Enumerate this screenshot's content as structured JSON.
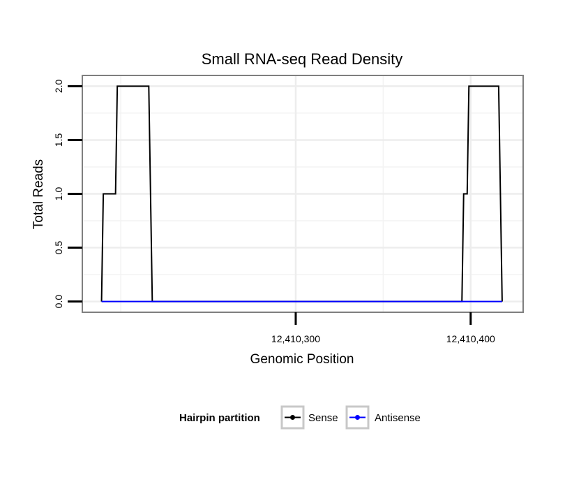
{
  "chart_data": {
    "type": "line",
    "title": "Small RNA-seq Read Density",
    "xlabel": "Genomic Position",
    "ylabel": "Total Reads",
    "xlim": [
      12410178,
      12410430
    ],
    "ylim": [
      -0.1,
      2.1
    ],
    "x_ticks": [
      {
        "value": 12410300,
        "label": "12,410,300"
      },
      {
        "value": 12410400,
        "label": "12,410,400"
      }
    ],
    "y_ticks": [
      {
        "value": 0,
        "label": "0.0"
      },
      {
        "value": 0.5,
        "label": "0.5"
      },
      {
        "value": 1,
        "label": "1.0"
      },
      {
        "value": 1.5,
        "label": "1.5"
      },
      {
        "value": 2,
        "label": "2.0"
      }
    ],
    "x_minor_gridlines": [
      12410200,
      12410350
    ],
    "y_minor_gridlines": [
      0.25,
      0.75,
      1.25,
      1.75
    ],
    "grid": true,
    "series": [
      {
        "name": "Sense",
        "color": "#000000",
        "x": [
          12410189,
          12410190,
          12410197,
          12410198,
          12410216,
          12410218,
          12410235,
          12410248,
          12410395,
          12410396,
          12410398,
          12410399,
          12410416,
          12410418
        ],
        "y": [
          0,
          1,
          1,
          2,
          2,
          0,
          0,
          0,
          0,
          1,
          1,
          2,
          2,
          0
        ]
      },
      {
        "name": "Antisense",
        "color": "#0000ff",
        "x": [
          12410189,
          12410218,
          12410395,
          12410418
        ],
        "y": [
          0,
          0,
          0,
          0
        ]
      }
    ],
    "legend": {
      "title": "Hairpin partition",
      "position": "bottom",
      "entries": [
        "Sense",
        "Antisense"
      ]
    }
  }
}
